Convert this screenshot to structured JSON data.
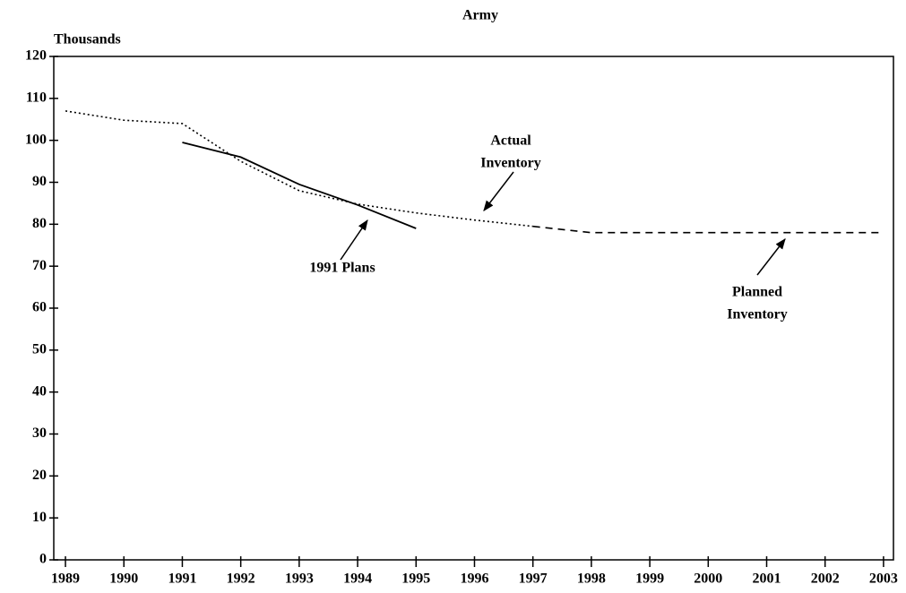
{
  "chart_data": {
    "type": "line",
    "title": "Army",
    "ylabel": "Thousands",
    "x": [
      1989,
      1990,
      1991,
      1992,
      1993,
      1994,
      1995,
      1996,
      1997,
      1998,
      1999,
      2000,
      2001,
      2002,
      2003
    ],
    "series": [
      {
        "name": "Actual Inventory",
        "color": "#000000",
        "style": "dotted",
        "values": [
          107,
          104.8,
          104,
          95,
          88,
          84.8,
          82.7,
          81,
          79.5,
          null,
          null,
          null,
          null,
          null,
          null
        ]
      },
      {
        "name": "Planned Inventory",
        "color": "#000000",
        "style": "dashed",
        "values": [
          null,
          null,
          null,
          null,
          null,
          null,
          null,
          null,
          79.5,
          78,
          78,
          78,
          78,
          78,
          78
        ]
      },
      {
        "name": "1991 Plans",
        "color": "#000000",
        "style": "solid",
        "values": [
          null,
          null,
          99.5,
          96,
          89.5,
          84.6,
          79,
          null,
          null,
          null,
          null,
          null,
          null,
          null,
          null
        ]
      }
    ],
    "xlim": [
      1988.8,
      2003.17
    ],
    "ylim": [
      0,
      120
    ],
    "xticks": [
      1989,
      1990,
      1991,
      1992,
      1993,
      1994,
      1995,
      1996,
      1997,
      1998,
      1999,
      2000,
      2001,
      2002,
      2003
    ],
    "yticks": [
      0,
      10,
      20,
      30,
      40,
      50,
      60,
      70,
      80,
      90,
      100,
      110,
      120
    ],
    "annotations": [
      [
        "Actual",
        "Inventory"
      ],
      [
        "1991 Plans"
      ],
      [
        "Planned",
        "Inventory"
      ]
    ]
  }
}
